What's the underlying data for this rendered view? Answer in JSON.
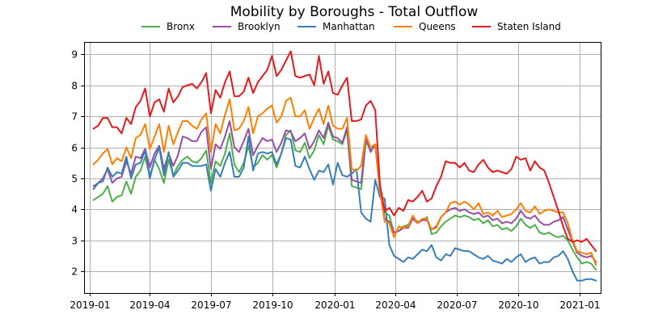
{
  "chart_data": {
    "type": "line",
    "title": "Mobility by Boroughs - Total Outflow",
    "xlabel": "",
    "ylabel": "",
    "grid": true,
    "legend_position": "top",
    "x_tick_labels": [
      "2019-01",
      "2019-04",
      "2019-07",
      "2019-10",
      "2020-01",
      "2020-04",
      "2020-07",
      "2020-10",
      "2021-01"
    ],
    "y_ticks": [
      2,
      3,
      4,
      5,
      6,
      7,
      8,
      9
    ],
    "ylim": [
      1.3,
      9.4
    ],
    "xlim_weeks": [
      -2,
      108
    ],
    "x": [
      "2019-01-07",
      "2019-01-14",
      "2019-01-21",
      "2019-01-28",
      "2019-02-04",
      "2019-02-11",
      "2019-02-18",
      "2019-02-25",
      "2019-03-04",
      "2019-03-11",
      "2019-03-18",
      "2019-03-25",
      "2019-04-01",
      "2019-04-08",
      "2019-04-15",
      "2019-04-22",
      "2019-04-29",
      "2019-05-06",
      "2019-05-13",
      "2019-05-20",
      "2019-05-27",
      "2019-06-03",
      "2019-06-10",
      "2019-06-17",
      "2019-06-24",
      "2019-07-01",
      "2019-07-08",
      "2019-07-15",
      "2019-07-22",
      "2019-07-29",
      "2019-08-05",
      "2019-08-12",
      "2019-08-19",
      "2019-08-26",
      "2019-09-02",
      "2019-09-09",
      "2019-09-16",
      "2019-09-23",
      "2019-09-30",
      "2019-10-07",
      "2019-10-14",
      "2019-10-21",
      "2019-10-28",
      "2019-11-04",
      "2019-11-11",
      "2019-11-18",
      "2019-11-25",
      "2019-12-02",
      "2019-12-09",
      "2019-12-16",
      "2019-12-23",
      "2019-12-30",
      "2020-01-06",
      "2020-01-13",
      "2020-01-20",
      "2020-01-27",
      "2020-02-03",
      "2020-02-10",
      "2020-02-17",
      "2020-02-24",
      "2020-03-02",
      "2020-03-09",
      "2020-03-16",
      "2020-03-23",
      "2020-03-30",
      "2020-04-06",
      "2020-04-13",
      "2020-04-20",
      "2020-04-27",
      "2020-05-04",
      "2020-05-11",
      "2020-05-18",
      "2020-05-25",
      "2020-06-01",
      "2020-06-08",
      "2020-06-15",
      "2020-06-22",
      "2020-06-29",
      "2020-07-06",
      "2020-07-13",
      "2020-07-20",
      "2020-07-27",
      "2020-08-03",
      "2020-08-10",
      "2020-08-17",
      "2020-08-24",
      "2020-08-31",
      "2020-09-07",
      "2020-09-14",
      "2020-09-21",
      "2020-09-28",
      "2020-10-05",
      "2020-10-12",
      "2020-10-19",
      "2020-10-26",
      "2020-11-02",
      "2020-11-09",
      "2020-11-16",
      "2020-11-23",
      "2020-11-30",
      "2020-12-07",
      "2020-12-14",
      "2020-12-21",
      "2020-12-28",
      "2021-01-04",
      "2021-01-11",
      "2021-01-18",
      "2021-01-25"
    ],
    "series": [
      {
        "name": "Bronx",
        "color": "#4daf4a",
        "values": [
          4.3,
          4.4,
          4.5,
          4.75,
          4.25,
          4.4,
          4.45,
          4.9,
          4.5,
          5.05,
          5.25,
          5.7,
          5.05,
          5.6,
          5.3,
          4.85,
          5.6,
          5.1,
          5.4,
          5.6,
          5.7,
          5.55,
          5.5,
          5.65,
          5.9,
          4.85,
          5.55,
          5.4,
          5.8,
          6.45,
          5.45,
          5.2,
          5.5,
          6.05,
          5.35,
          5.5,
          5.75,
          5.6,
          5.75,
          5.35,
          5.8,
          6.4,
          6.55,
          5.9,
          5.85,
          6.15,
          5.65,
          5.9,
          6.4,
          6.1,
          6.7,
          6.25,
          6.2,
          6.1,
          6.55,
          4.75,
          4.7,
          4.65,
          6.2,
          5.9,
          6.05,
          4.7,
          3.9,
          3.8,
          3.25,
          3.3,
          3.45,
          3.5,
          3.75,
          3.6,
          3.65,
          3.75,
          3.2,
          3.25,
          3.45,
          3.6,
          3.7,
          3.8,
          3.75,
          3.8,
          3.75,
          3.65,
          3.7,
          3.55,
          3.65,
          3.45,
          3.5,
          3.35,
          3.4,
          3.3,
          3.45,
          3.7,
          3.5,
          3.4,
          3.5,
          3.25,
          3.2,
          3.25,
          3.15,
          3.1,
          3.15,
          3.0,
          2.7,
          2.45,
          2.25,
          2.3,
          2.25,
          2.05
        ]
      },
      {
        "name": "Brooklyn",
        "color": "#984ea3",
        "values": [
          4.75,
          4.85,
          5.0,
          5.3,
          4.85,
          5.0,
          5.05,
          5.55,
          5.15,
          5.7,
          5.65,
          5.95,
          5.35,
          5.8,
          6.05,
          5.3,
          5.8,
          5.4,
          5.75,
          6.35,
          6.3,
          6.2,
          6.2,
          6.5,
          6.65,
          5.3,
          6.1,
          5.95,
          6.35,
          6.85,
          6.0,
          5.85,
          6.2,
          6.6,
          5.75,
          6.05,
          6.3,
          6.2,
          6.25,
          5.85,
          6.15,
          6.55,
          6.5,
          6.2,
          6.3,
          6.45,
          5.95,
          6.2,
          6.55,
          6.3,
          6.8,
          6.35,
          6.3,
          6.15,
          6.65,
          4.95,
          4.9,
          4.85,
          6.3,
          5.85,
          6.1,
          4.55,
          3.7,
          3.6,
          3.25,
          3.3,
          3.4,
          3.4,
          3.7,
          3.55,
          3.65,
          3.65,
          3.35,
          3.45,
          3.75,
          3.9,
          4.0,
          4.05,
          3.95,
          4.0,
          3.9,
          3.85,
          3.9,
          3.75,
          3.8,
          3.65,
          3.7,
          3.55,
          3.6,
          3.55,
          3.7,
          3.95,
          3.75,
          3.7,
          3.8,
          3.6,
          3.5,
          3.5,
          3.6,
          3.65,
          3.75,
          3.35,
          2.95,
          2.6,
          2.5,
          2.45,
          2.5,
          2.3
        ]
      },
      {
        "name": "Manhattan",
        "color": "#377eb8",
        "values": [
          4.65,
          4.85,
          4.9,
          5.35,
          5.05,
          5.2,
          5.15,
          5.7,
          5.0,
          5.45,
          5.5,
          5.9,
          5.0,
          5.6,
          6.0,
          5.1,
          5.85,
          5.05,
          5.25,
          5.5,
          5.5,
          5.4,
          5.4,
          5.4,
          5.45,
          4.6,
          5.3,
          5.05,
          5.5,
          5.85,
          5.05,
          5.05,
          5.35,
          6.35,
          5.25,
          5.8,
          5.85,
          5.8,
          5.85,
          5.45,
          5.8,
          6.3,
          6.25,
          5.4,
          5.35,
          5.7,
          5.3,
          4.95,
          5.25,
          5.2,
          5.45,
          4.8,
          5.5,
          5.1,
          5.05,
          5.15,
          5.3,
          3.9,
          3.7,
          3.6,
          4.95,
          4.4,
          4.35,
          2.85,
          2.5,
          2.4,
          2.3,
          2.45,
          2.4,
          2.55,
          2.7,
          2.65,
          2.85,
          2.45,
          2.35,
          2.55,
          2.5,
          2.75,
          2.7,
          2.65,
          2.65,
          2.55,
          2.45,
          2.4,
          2.5,
          2.35,
          2.3,
          2.25,
          2.4,
          2.3,
          2.45,
          2.55,
          2.3,
          2.4,
          2.45,
          2.25,
          2.3,
          2.3,
          2.45,
          2.5,
          2.65,
          2.4,
          2.0,
          1.7,
          1.7,
          1.75,
          1.75,
          1.7
        ]
      },
      {
        "name": "Queens",
        "color": "#ff7f00",
        "values": [
          5.45,
          5.6,
          5.8,
          5.95,
          5.45,
          5.65,
          5.55,
          6.0,
          5.65,
          6.3,
          6.4,
          6.75,
          5.95,
          6.35,
          6.75,
          5.85,
          6.7,
          6.1,
          6.5,
          6.85,
          6.85,
          6.7,
          6.6,
          6.9,
          7.1,
          5.85,
          6.75,
          6.45,
          7.05,
          7.55,
          6.55,
          6.6,
          6.85,
          7.3,
          6.45,
          7.0,
          7.1,
          7.25,
          7.35,
          6.8,
          7.0,
          7.5,
          7.6,
          7.0,
          7.0,
          7.2,
          6.6,
          6.95,
          7.25,
          6.75,
          7.35,
          6.7,
          6.6,
          6.6,
          6.95,
          5.3,
          5.25,
          5.4,
          6.4,
          6.0,
          6.1,
          4.6,
          3.6,
          3.55,
          3.1,
          3.45,
          3.4,
          3.45,
          3.8,
          3.55,
          3.7,
          3.7,
          3.35,
          3.4,
          3.75,
          3.9,
          4.2,
          4.25,
          4.15,
          4.25,
          4.15,
          4.0,
          4.2,
          3.85,
          3.9,
          3.8,
          3.95,
          3.75,
          3.8,
          3.85,
          4.0,
          4.2,
          3.95,
          3.9,
          4.1,
          3.85,
          3.95,
          4.0,
          3.95,
          3.9,
          3.9,
          3.55,
          3.0,
          2.65,
          2.6,
          2.55,
          2.6,
          2.2
        ]
      },
      {
        "name": "Staten Island",
        "color": "#e41a1c",
        "values": [
          6.6,
          6.7,
          6.95,
          6.95,
          6.65,
          6.65,
          6.45,
          6.95,
          6.75,
          7.3,
          7.5,
          7.9,
          7.0,
          7.45,
          7.55,
          7.15,
          7.9,
          7.45,
          7.65,
          7.95,
          8.0,
          8.05,
          7.9,
          8.1,
          8.4,
          7.1,
          7.85,
          7.6,
          8.1,
          8.45,
          7.65,
          7.65,
          7.8,
          8.25,
          7.75,
          8.1,
          8.3,
          8.5,
          8.95,
          8.3,
          8.5,
          8.8,
          9.1,
          8.3,
          8.25,
          8.3,
          8.35,
          8.0,
          8.95,
          8.05,
          8.45,
          7.75,
          7.7,
          8.0,
          8.25,
          6.85,
          6.85,
          6.9,
          7.35,
          7.5,
          7.2,
          4.8,
          3.95,
          4.05,
          3.8,
          4.05,
          3.95,
          4.3,
          4.25,
          4.4,
          4.6,
          4.25,
          4.35,
          4.75,
          5.05,
          5.55,
          5.5,
          5.5,
          5.35,
          5.5,
          5.25,
          5.2,
          5.45,
          5.6,
          5.35,
          5.2,
          5.25,
          5.2,
          5.15,
          5.3,
          5.7,
          5.6,
          5.65,
          5.25,
          5.55,
          5.35,
          5.25,
          4.85,
          4.4,
          3.95,
          3.45,
          3.05,
          2.95,
          3.0,
          2.95,
          3.05,
          2.85,
          2.65
        ]
      }
    ]
  }
}
